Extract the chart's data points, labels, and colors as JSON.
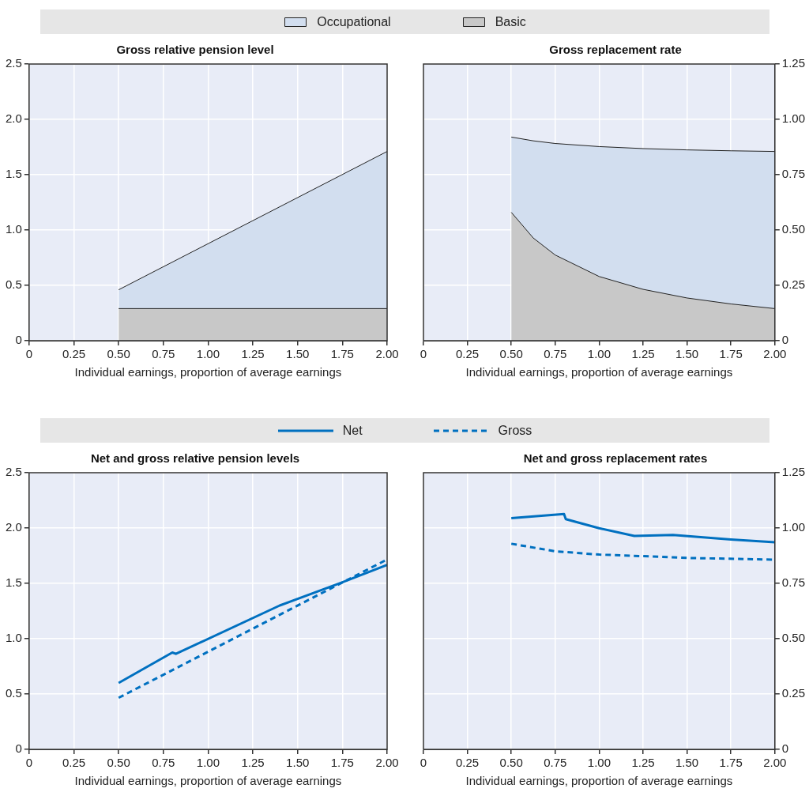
{
  "chart_data": [
    {
      "type": "area",
      "title": "Gross relative pension level",
      "xlabel": "Individual earnings, proportion of average earnings",
      "stacked": true,
      "legend": "top",
      "grid": true,
      "xlim": [
        0,
        2
      ],
      "xticks": [
        0,
        0.25,
        {
          "value": 0.5,
          "label": "0.50"
        },
        0.75,
        {
          "value": 1,
          "label": "1.00"
        },
        1.25,
        {
          "value": 1.5,
          "label": "1.50"
        },
        1.75,
        {
          "value": 2,
          "label": "2.00"
        }
      ],
      "ylim": [
        0,
        2.5
      ],
      "yticks": [
        0,
        0.5,
        {
          "value": 1,
          "label": "1.0"
        },
        1.5,
        {
          "value": 2,
          "label": "2.0"
        },
        2.5
      ],
      "x": [
        0.5,
        2
      ],
      "series": [
        {
          "name": "Basic",
          "color": "#c8c8c8",
          "values": [
            0.29,
            0.29
          ]
        },
        {
          "name": "Occupational",
          "color": "#d2deef",
          "values": [
            0.17,
            1.42
          ]
        }
      ]
    },
    {
      "type": "area",
      "title": "Gross replacement rate",
      "xlabel": "Individual earnings, proportion of average earnings",
      "stacked": true,
      "grid": true,
      "xlim": [
        0,
        2
      ],
      "xticks": [
        0,
        0.25,
        {
          "value": 0.5,
          "label": "0.50"
        },
        0.75,
        {
          "value": 1,
          "label": "1.00"
        },
        1.25,
        {
          "value": 1.5,
          "label": "1.50"
        },
        1.75,
        {
          "value": 2,
          "label": "2.00"
        }
      ],
      "ylim": [
        0,
        1.25
      ],
      "yticks": [
        0,
        0.25,
        {
          "value": 0.5,
          "label": "0.50"
        },
        0.75,
        {
          "value": 1,
          "label": "1.00"
        },
        1.25
      ],
      "x": [
        0.5,
        0.625,
        0.75,
        1,
        1.25,
        1.5,
        1.75,
        2
      ],
      "series": [
        {
          "color": "#c8c8c8",
          "values": [
            0.58,
            0.464,
            0.387,
            0.29,
            0.232,
            0.193,
            0.166,
            0.145
          ]
        },
        {
          "color": "#d2deef",
          "values": [
            0.34,
            0.439,
            0.504,
            0.587,
            0.636,
            0.669,
            0.692,
            0.71
          ]
        }
      ]
    },
    {
      "type": "line",
      "title": "Net and gross relative pension levels",
      "xlabel": "Individual earnings, proportion of average earnings",
      "legend": "top",
      "grid": true,
      "marker": "none",
      "xlim": [
        0,
        2
      ],
      "xticks": [
        0,
        0.25,
        {
          "value": 0.5,
          "label": "0.50"
        },
        0.75,
        {
          "value": 1,
          "label": "1.00"
        },
        1.25,
        {
          "value": 1.5,
          "label": "1.50"
        },
        1.75,
        {
          "value": 2,
          "label": "2.00"
        }
      ],
      "ylim": [
        0,
        2.5
      ],
      "yticks": [
        0,
        0.5,
        {
          "value": 1,
          "label": "1.0"
        },
        1.5,
        {
          "value": 2,
          "label": "2.0"
        },
        2.5
      ],
      "series": [
        {
          "name": "Net",
          "color": "#0070c0",
          "line_style": "solid",
          "x": [
            0.5,
            0.8,
            0.82,
            1.4,
            1.75,
            2
          ],
          "values": [
            0.6,
            0.875,
            0.863,
            1.3,
            1.51,
            1.667
          ]
        },
        {
          "name": "Gross",
          "color": "#0070c0",
          "line_style": "dashed",
          "x": [
            0.5,
            2
          ],
          "values": [
            0.466,
            1.716
          ]
        }
      ]
    },
    {
      "type": "line",
      "title": "Net and gross replacement rates",
      "xlabel": "Individual earnings, proportion of average earnings",
      "grid": true,
      "marker": "none",
      "xlim": [
        0,
        2
      ],
      "xticks": [
        0,
        0.25,
        {
          "value": 0.5,
          "label": "0.50"
        },
        0.75,
        {
          "value": 1,
          "label": "1.00"
        },
        1.25,
        {
          "value": 1.5,
          "label": "1.50"
        },
        1.75,
        {
          "value": 2,
          "label": "2.00"
        }
      ],
      "ylim": [
        0,
        1.25
      ],
      "yticks": [
        0,
        0.25,
        {
          "value": 0.5,
          "label": "0.50"
        },
        0.75,
        {
          "value": 1,
          "label": "1.00"
        },
        1.25
      ],
      "series": [
        {
          "color": "#0070c0",
          "line_style": "solid",
          "x": [
            0.5,
            0.8,
            0.81,
            1,
            1.2,
            1.42,
            1.75,
            2
          ],
          "values": [
            1.045,
            1.063,
            1.04,
            0.999,
            0.964,
            0.969,
            0.948,
            0.936
          ]
        },
        {
          "color": "#0070c0",
          "line_style": "dashed",
          "x": [
            0.5,
            0.75,
            1,
            1.25,
            1.5,
            2
          ],
          "values": [
            0.929,
            0.895,
            0.88,
            0.873,
            0.865,
            0.857
          ]
        }
      ]
    }
  ]
}
